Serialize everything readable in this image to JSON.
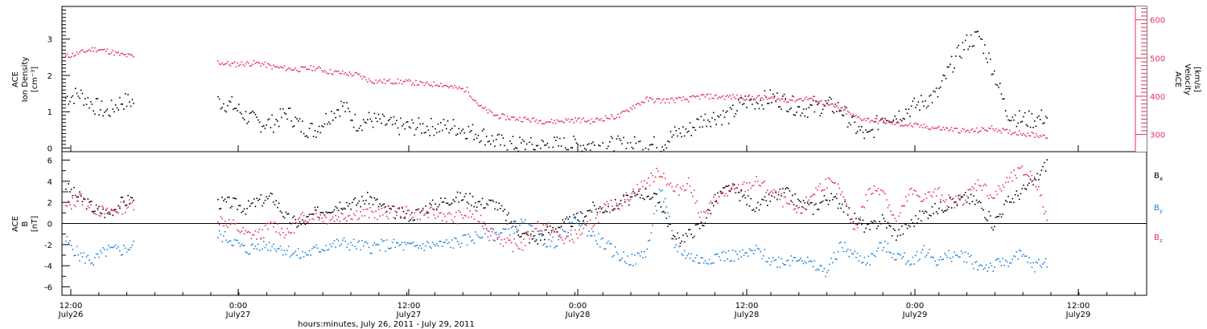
{
  "chart_data": [
    {
      "type": "scatter",
      "panel": "density-velocity",
      "ylabel_left": [
        "ACE",
        "Ion Density",
        "[cm⁻³]"
      ],
      "ylabel_right": [
        "ACE",
        "Velocity",
        "[km/s]"
      ],
      "yticks_left": [
        "0",
        "1",
        "2",
        "3"
      ],
      "yticks_right": [
        "300",
        "400",
        "500",
        "600"
      ],
      "ylim_left": [
        -0.1,
        3.9
      ],
      "ylim_right": [
        255,
        635
      ],
      "colors": {
        "density": "#000000",
        "velocity": "#e8305a"
      },
      "series": [
        {
          "axis": "left",
          "x_hours": [
            0,
            1,
            2,
            3,
            4,
            5,
            6,
            7,
            8,
            9,
            10,
            11,
            12,
            13,
            14,
            15,
            16,
            17,
            18,
            19,
            20,
            21,
            22,
            23,
            24,
            25,
            26,
            27,
            28,
            29,
            30,
            31,
            32,
            33,
            34,
            35,
            36,
            37,
            38,
            39,
            40,
            41,
            42,
            43,
            44,
            45,
            46,
            47,
            48,
            49,
            50,
            51,
            52,
            53,
            54,
            55,
            56,
            57,
            58,
            59,
            60,
            61,
            62,
            63,
            64,
            65,
            66,
            67,
            68,
            69,
            70,
            71
          ],
          "values": [
            1.4,
            1.5,
            1.2,
            1.0,
            1.3,
            1.3,
            null,
            null,
            null,
            null,
            null,
            1.3,
            1.2,
            0.9,
            0.7,
            0.7,
            1.0,
            0.6,
            0.5,
            0.9,
            1.2,
            0.7,
            0.8,
            0.7,
            0.6,
            0.6,
            0.6,
            0.6,
            0.6,
            0.5,
            0.4,
            0.2,
            0.1,
            0.1,
            0.05,
            0.1,
            0.1,
            0.1,
            0.1,
            0.1,
            0.1,
            0.1,
            0.1,
            0.1,
            0.4,
            0.5,
            0.8,
            0.9,
            0.9,
            1.3,
            1.3,
            1.4,
            1.3,
            1.1,
            1.1,
            1.2,
            1.1,
            0.6,
            0.3,
            0.9,
            0.9,
            1.1,
            1.3,
            1.5,
            2.3,
            2.9,
            3.1,
            2.2,
            1.0,
            0.8,
            0.8,
            0.9
          ]
        },
        {
          "axis": "right",
          "x_hours": [
            0,
            1,
            2,
            3,
            4,
            5,
            6,
            7,
            8,
            9,
            10,
            11,
            12,
            13,
            14,
            15,
            16,
            17,
            18,
            19,
            20,
            21,
            22,
            23,
            24,
            25,
            26,
            27,
            28,
            29,
            30,
            31,
            32,
            33,
            34,
            35,
            36,
            37,
            38,
            39,
            40,
            41,
            42,
            43,
            44,
            45,
            46,
            47,
            48,
            49,
            50,
            51,
            52,
            53,
            54,
            55,
            56,
            57,
            58,
            59,
            60,
            61,
            62,
            63,
            64,
            65,
            66,
            67,
            68,
            69,
            70,
            71
          ],
          "values": [
            505,
            515,
            525,
            520,
            510,
            505,
            null,
            null,
            null,
            null,
            null,
            490,
            485,
            487,
            488,
            478,
            474,
            472,
            476,
            466,
            462,
            458,
            442,
            440,
            440,
            438,
            432,
            434,
            424,
            418,
            372,
            352,
            345,
            342,
            338,
            335,
            338,
            340,
            336,
            345,
            350,
            375,
            393,
            390,
            392,
            394,
            402,
            400,
            400,
            398,
            398,
            395,
            392,
            394,
            396,
            380,
            368,
            348,
            340,
            336,
            330,
            326,
            322,
            318,
            315,
            310,
            312,
            318,
            308,
            306,
            300,
            298
          ]
        }
      ]
    },
    {
      "type": "scatter",
      "panel": "magnetic-field",
      "ylabel_left": [
        "ACE",
        "B",
        "[nT]"
      ],
      "yticks_left": [
        "-6",
        "-4",
        "-2",
        "0",
        "2",
        "4",
        "6"
      ],
      "ylim_left": [
        -6.8,
        6.8
      ],
      "colors": {
        "Bx": "#000000",
        "By": "#1e82dc",
        "Bz": "#e8305a"
      },
      "series": [
        {
          "name": "B",
          "sub": "x",
          "x_hours": [
            0,
            1,
            2,
            3,
            4,
            5,
            6,
            7,
            8,
            9,
            10,
            11,
            12,
            13,
            14,
            15,
            16,
            17,
            18,
            19,
            20,
            21,
            22,
            23,
            24,
            25,
            26,
            27,
            28,
            29,
            30,
            31,
            32,
            33,
            34,
            35,
            36,
            37,
            38,
            39,
            40,
            41,
            42,
            43,
            44,
            45,
            46,
            47,
            48,
            49,
            50,
            51,
            52,
            53,
            54,
            55,
            56,
            57,
            58,
            59,
            60,
            61,
            62,
            63,
            64,
            65,
            66,
            67,
            68,
            69,
            70,
            71
          ],
          "values": [
            3.5,
            2.5,
            1.5,
            1.0,
            2.0,
            2.5,
            null,
            null,
            null,
            null,
            null,
            2.0,
            2.0,
            1.5,
            2.2,
            2.5,
            0.5,
            0.0,
            1.0,
            1.5,
            2.0,
            2.0,
            2.5,
            1.5,
            1.0,
            0.8,
            1.5,
            2.0,
            2.5,
            2.5,
            2.0,
            2.0,
            0.5,
            -1.0,
            -1.5,
            -0.5,
            0.0,
            0.5,
            1.5,
            1.5,
            2.0,
            2.5,
            3.0,
            2.0,
            -1.5,
            -1.0,
            0.0,
            2.5,
            3.5,
            2.5,
            1.5,
            2.5,
            3.0,
            2.0,
            1.5,
            2.5,
            2.0,
            0.5,
            -0.5,
            0.5,
            -1.0,
            0.0,
            1.0,
            1.5,
            2.0,
            2.5,
            2.0,
            0.0,
            2.0,
            3.0,
            4.0,
            6.0
          ]
        },
        {
          "name": "B",
          "sub": "y",
          "x_hours": [
            0,
            1,
            2,
            3,
            4,
            5,
            6,
            7,
            8,
            9,
            10,
            11,
            12,
            13,
            14,
            15,
            16,
            17,
            18,
            19,
            20,
            21,
            22,
            23,
            24,
            25,
            26,
            27,
            28,
            29,
            30,
            31,
            32,
            33,
            34,
            35,
            36,
            37,
            38,
            39,
            40,
            41,
            42,
            43,
            44,
            45,
            46,
            47,
            48,
            49,
            50,
            51,
            52,
            53,
            54,
            55,
            56,
            57,
            58,
            59,
            60,
            61,
            62,
            63,
            64,
            65,
            66,
            67,
            68,
            69,
            70,
            71
          ],
          "values": [
            -1.5,
            -3.0,
            -3.5,
            -2.5,
            -2.5,
            -2.0,
            null,
            null,
            null,
            null,
            null,
            -1.0,
            -1.5,
            -2.5,
            -2.0,
            -2.0,
            -2.5,
            -3.0,
            -2.5,
            -2.0,
            -1.8,
            -2.0,
            -2.2,
            -2.0,
            -2.0,
            -2.2,
            -2.0,
            -2.0,
            -1.8,
            -1.5,
            -1.0,
            -1.0,
            -0.5,
            0.0,
            -1.0,
            -2.0,
            -1.0,
            0.5,
            -1.0,
            -2.0,
            -3.0,
            -3.5,
            -2.5,
            3.5,
            -2.0,
            -3.0,
            -3.5,
            -3.0,
            -3.0,
            -3.0,
            -2.5,
            -3.5,
            -3.5,
            -3.0,
            -4.0,
            -4.5,
            -2.0,
            -3.0,
            -3.5,
            -2.0,
            -3.0,
            -3.5,
            -2.5,
            -3.5,
            -3.0,
            -3.0,
            -4.0,
            -4.0,
            -3.5,
            -3.0,
            -4.0,
            -3.5
          ]
        },
        {
          "name": "B",
          "sub": "z",
          "x_hours": [
            0,
            1,
            2,
            3,
            4,
            5,
            6,
            7,
            8,
            9,
            10,
            11,
            12,
            13,
            14,
            15,
            16,
            17,
            18,
            19,
            20,
            21,
            22,
            23,
            24,
            25,
            26,
            27,
            28,
            29,
            30,
            31,
            32,
            33,
            34,
            35,
            36,
            37,
            38,
            39,
            40,
            41,
            42,
            43,
            44,
            45,
            46,
            47,
            48,
            49,
            50,
            51,
            52,
            53,
            54,
            55,
            56,
            57,
            58,
            59,
            60,
            61,
            62,
            63,
            64,
            65,
            66,
            67,
            68,
            69,
            70,
            71
          ],
          "values": [
            1.5,
            2.5,
            1.5,
            1.0,
            1.5,
            2.0,
            null,
            null,
            null,
            null,
            null,
            0.5,
            0.0,
            -1.0,
            -1.0,
            0.0,
            -1.0,
            0.5,
            1.0,
            0.5,
            0.8,
            1.0,
            1.0,
            1.0,
            1.2,
            1.0,
            1.0,
            1.0,
            0.5,
            1.0,
            0.5,
            -1.0,
            -2.0,
            -2.0,
            0.0,
            -0.5,
            -1.5,
            -1.0,
            0.0,
            1.5,
            2.0,
            3.0,
            4.0,
            5.0,
            3.0,
            4.0,
            0.5,
            2.5,
            3.0,
            3.5,
            4.0,
            3.0,
            2.0,
            1.0,
            3.0,
            4.0,
            3.0,
            -0.5,
            3.0,
            3.5,
            0.0,
            3.0,
            2.5,
            3.0,
            2.0,
            2.5,
            4.0,
            2.5,
            4.0,
            5.0,
            4.5,
            0.0
          ]
        }
      ]
    }
  ],
  "xaxis": {
    "ticks": [
      {
        "time": "12:00",
        "date": "July26"
      },
      {
        "time": "0:00",
        "date": "July27"
      },
      {
        "time": "12:00",
        "date": "July27"
      },
      {
        "time": "0:00",
        "date": "July28"
      },
      {
        "time": "12:00",
        "date": "July28"
      },
      {
        "time": "0:00",
        "date": "July29"
      },
      {
        "time": "12:00",
        "date": "July29"
      }
    ],
    "title": "hours:minutes, July 26, 2011 - July 29, 2011"
  },
  "legend_colors": {
    "Bx": "#000000",
    "By": "#1e82dc",
    "Bz": "#e8305a"
  }
}
